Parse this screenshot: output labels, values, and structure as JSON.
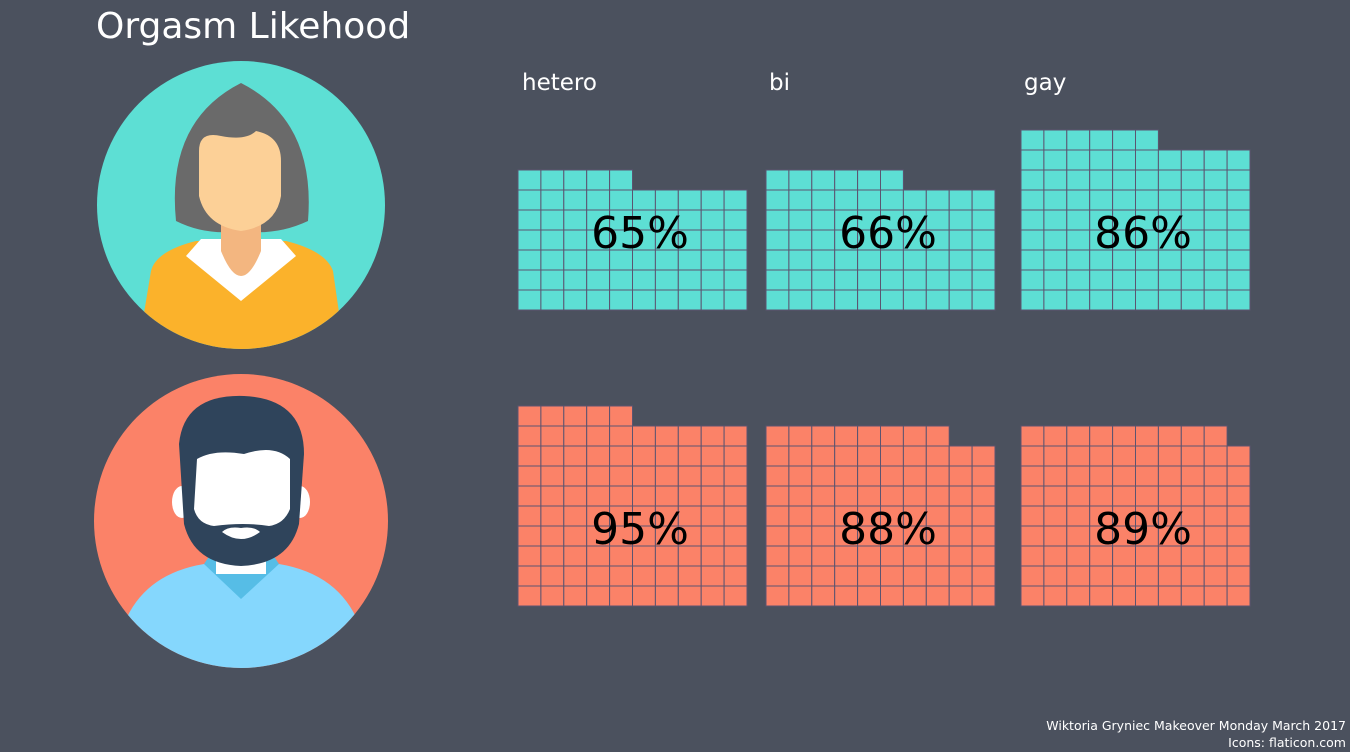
{
  "title": "Orgasm Likehood",
  "chart_data": {
    "type": "waffle",
    "title": "Orgasm Likehood",
    "categories": [
      "hetero",
      "bi",
      "gay"
    ],
    "grid": "10x10",
    "series": [
      {
        "group": "women",
        "color": "#5ddfd4",
        "values": [
          65,
          66,
          86
        ],
        "labels": [
          "65%",
          "66%",
          "86%"
        ]
      },
      {
        "group": "men",
        "color": "#fb8268",
        "values": [
          95,
          88,
          89
        ],
        "labels": [
          "95%",
          "88%",
          "89%"
        ]
      }
    ]
  },
  "icons": {
    "women": "woman-avatar-icon",
    "men": "man-avatar-icon"
  },
  "colors": {
    "background": "#4b515e",
    "gridline": "#5c5470"
  },
  "footer": {
    "credit": "Wiktoria Gryniec Makeover Monday March 2017",
    "icons": "Icons: flaticon.com"
  }
}
